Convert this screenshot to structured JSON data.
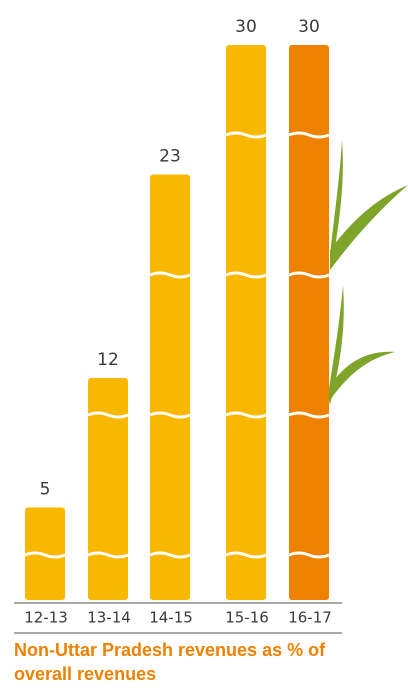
{
  "chart_data": {
    "type": "bar",
    "title": "Non-Uttar Pradesh revenues as % of overall revenues",
    "categories": [
      "12-13",
      "13-14",
      "14-15",
      "15-16",
      "16-17"
    ],
    "values": [
      5,
      12,
      23,
      30,
      30
    ],
    "colors": [
      "#f9b800",
      "#f9b800",
      "#f9b800",
      "#f9b800",
      "#ee8100"
    ],
    "data_labels": true
  }
}
